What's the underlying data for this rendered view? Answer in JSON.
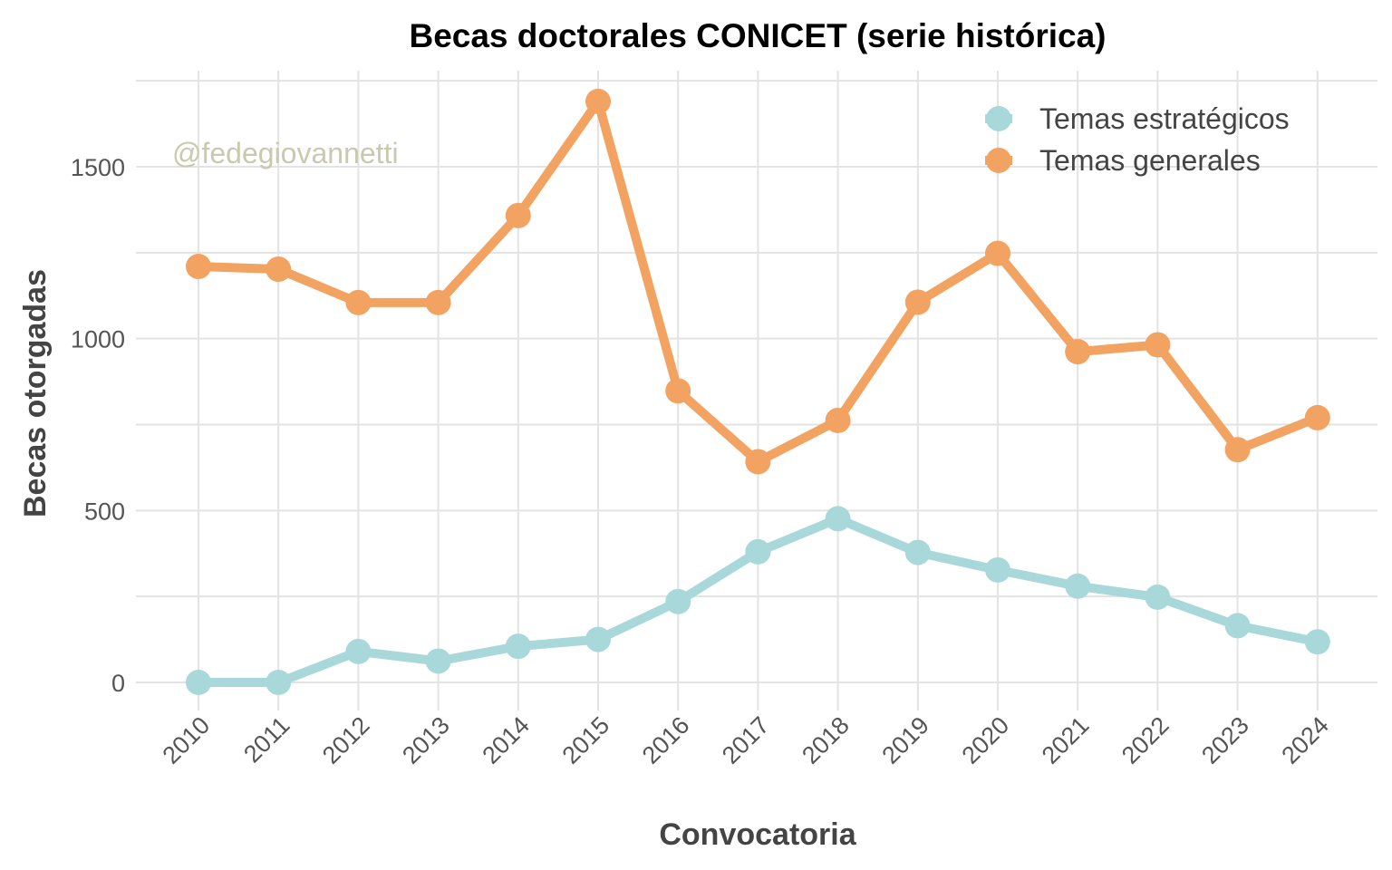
{
  "chart_data": {
    "type": "line",
    "title": "Becas doctorales CONICET (serie histórica)",
    "xlabel": "Convocatoria",
    "ylabel": "Becas otorgadas",
    "watermark": "@fedegiovannetti",
    "categories": [
      "2010",
      "2011",
      "2012",
      "2013",
      "2014",
      "2015",
      "2016",
      "2017",
      "2018",
      "2019",
      "2020",
      "2021",
      "2022",
      "2023",
      "2024"
    ],
    "yticks": [
      0,
      500,
      1000,
      1500
    ],
    "ylim": [
      -80,
      1760
    ],
    "grid": true,
    "legend_position": "top-right",
    "series": [
      {
        "name": "Temas estratégicos",
        "color": "#a8d8da",
        "values": [
          0,
          0,
          90,
          62,
          105,
          125,
          235,
          380,
          476,
          378,
          327,
          280,
          248,
          165,
          118
        ]
      },
      {
        "name": "Temas generales",
        "color": "#f2a261",
        "values": [
          1210,
          1202,
          1105,
          1105,
          1358,
          1690,
          848,
          642,
          762,
          1106,
          1248,
          962,
          982,
          677,
          770
        ]
      }
    ]
  }
}
